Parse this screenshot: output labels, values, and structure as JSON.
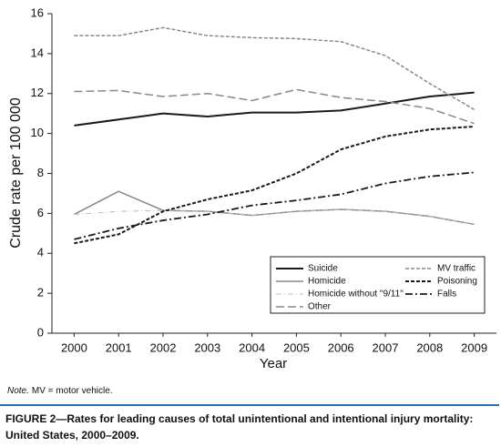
{
  "chart_data": {
    "type": "line",
    "y_label": "Crude rate per 100 000",
    "x_label": "Year",
    "categories": [
      "2000",
      "2001",
      "2002",
      "2003",
      "2004",
      "2005",
      "2006",
      "2007",
      "2008",
      "2009"
    ],
    "ylim": [
      0,
      16
    ],
    "yticks": [
      0,
      2,
      4,
      6,
      8,
      10,
      12,
      14,
      16
    ],
    "series": [
      {
        "name": "Suicide",
        "color": "#1a1a1a",
        "dash": "none",
        "width": 2,
        "values": [
          10.4,
          10.7,
          11.0,
          10.85,
          11.05,
          11.05,
          11.15,
          11.5,
          11.85,
          12.05
        ]
      },
      {
        "name": "Homicide",
        "color": "#888888",
        "dash": "none",
        "width": 1.5,
        "values": [
          5.95,
          7.1,
          6.15,
          6.1,
          5.9,
          6.1,
          6.2,
          6.1,
          5.85,
          5.45
        ]
      },
      {
        "name": "Homicide without \"9/11\"",
        "color": "#bbbbbb",
        "dash": "6,3,1,3",
        "width": 1,
        "values": [
          5.95,
          6.1,
          6.15,
          6.1,
          5.9,
          6.1,
          6.2,
          6.1,
          5.85,
          5.45
        ]
      },
      {
        "name": "Other",
        "color": "#888888",
        "dash": "9,4",
        "width": 1.5,
        "values": [
          12.1,
          12.15,
          11.85,
          12.0,
          11.65,
          12.2,
          11.8,
          11.6,
          11.25,
          10.5
        ]
      },
      {
        "name": "MV traffic",
        "color": "#888888",
        "dash": "4,2",
        "width": 1.5,
        "values": [
          14.9,
          14.9,
          15.3,
          14.9,
          14.8,
          14.75,
          14.6,
          13.9,
          12.5,
          11.2
        ]
      },
      {
        "name": "Poisoning",
        "color": "#1a1a1a",
        "dash": "4,2",
        "width": 2,
        "values": [
          4.5,
          4.95,
          6.1,
          6.7,
          7.15,
          8.0,
          9.2,
          9.85,
          10.2,
          10.35
        ]
      },
      {
        "name": "Falls",
        "color": "#1a1a1a",
        "dash": "8,3,2,3",
        "width": 1.8,
        "values": [
          4.7,
          5.25,
          5.65,
          5.95,
          6.4,
          6.65,
          6.95,
          7.5,
          7.85,
          8.05
        ]
      }
    ]
  },
  "note": {
    "label": "Note.",
    "text": "MV = motor vehicle."
  },
  "caption": "FIGURE 2—Rates for leading causes of total unintentional and intentional injury mortality: United States, 2000–2009."
}
